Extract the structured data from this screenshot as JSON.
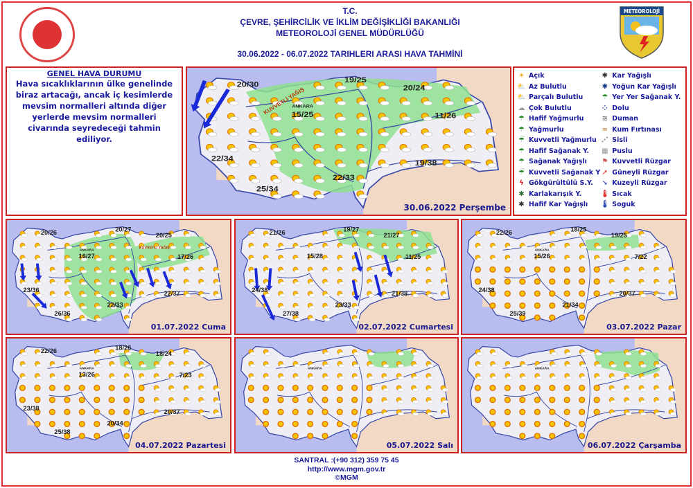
{
  "header": {
    "line1": "T.C.",
    "line2": "ÇEVRE, ŞEHİRCİLİK VE İKLİM DEĞİŞİKLİĞİ BAKANLIĞI",
    "line3": "METEOROLOJİ  GENEL  MÜDÜRLÜĞÜ",
    "range": "30.06.2022  -  06.07.2022   TARIHLERI  ARASI  HAVA  TAHMİNİ",
    "logo_text": "METEOROLOJİ"
  },
  "general": {
    "title": "GENEL HAVA DURUMU",
    "text": "Hava sıcaklıklarının ülke genelinde biraz artacağı, ancak iç kesimlerde mevsim normalleri altında diğer yerlerde mevsim normalleri civarında seyredeceği tahmin ediliyor."
  },
  "legend": [
    {
      "label": "Açık",
      "icon": "sun-icon"
    },
    {
      "label": "Az Bulutlu",
      "icon": "few-clouds-icon"
    },
    {
      "label": "Parçalı Bulutlu",
      "icon": "partly-cloudy-icon"
    },
    {
      "label": "Çok Bulutlu",
      "icon": "cloudy-icon"
    },
    {
      "label": "Hafif Yağmurlu",
      "icon": "light-rain-icon"
    },
    {
      "label": "Yağmurlu",
      "icon": "rain-icon"
    },
    {
      "label": "Kuvvetli Yağmurlu",
      "icon": "heavy-rain-icon"
    },
    {
      "label": "Hafif Sağanak Y.",
      "icon": "light-shower-icon"
    },
    {
      "label": "Sağanak Yağışlı",
      "icon": "shower-icon"
    },
    {
      "label": "Kuvvetli Sağanak Y",
      "icon": "heavy-shower-icon"
    },
    {
      "label": "Gökgürültülü S.Y.",
      "icon": "thunderstorm-icon"
    },
    {
      "label": "Karlakarışık Y.",
      "icon": "sleet-icon"
    },
    {
      "label": "Hafif Kar Yağışlı",
      "icon": "light-snow-icon"
    },
    {
      "label": "Kar Yağışlı",
      "icon": "snow-icon"
    },
    {
      "label": "Yoğun Kar Yağışlı",
      "icon": "heavy-snow-icon"
    },
    {
      "label": "Yer Yer Sağanak Y.",
      "icon": "scattered-shower-icon"
    },
    {
      "label": "Dolu",
      "icon": "hail-icon"
    },
    {
      "label": "Duman",
      "icon": "smoke-icon"
    },
    {
      "label": "Kum Fırtınası",
      "icon": "sandstorm-icon"
    },
    {
      "label": "Sisli",
      "icon": "fog-icon"
    },
    {
      "label": "Puslu",
      "icon": "haze-icon"
    },
    {
      "label": "Kuvvetli Rüzgar",
      "icon": "strong-wind-icon"
    },
    {
      "label": "Güneyli Rüzgar",
      "icon": "south-wind-arrow-icon"
    },
    {
      "label": "Kuzeyli Rüzgar",
      "icon": "north-wind-arrow-icon"
    },
    {
      "label": "Sıcak",
      "icon": "hot-thermometer-icon"
    },
    {
      "label": "Soguk",
      "icon": "cold-thermometer-icon"
    }
  ],
  "maps": [
    {
      "date": "30.06.2022 Perşembe",
      "city": "ANKARA",
      "warning": "KUVVETLİ YAĞIŞ",
      "temps": [
        "20/30",
        "19/25",
        "20/24",
        "15/25",
        "11/26",
        "22/34",
        "25/34",
        "22/33",
        "19/38"
      ]
    },
    {
      "date": "01.07.2022 Cuma",
      "city": "ANKARA",
      "warning": "KUVVETLİ YAĞIŞ",
      "temps": [
        "20/26",
        "20/27",
        "20/25",
        "16/27",
        "17/26",
        "23/36",
        "26/36",
        "22/33",
        "22/37"
      ]
    },
    {
      "date": "02.07.2022 Cumartesi",
      "temps": [
        "21/26",
        "19/27",
        "21/27",
        "15/28",
        "11/25",
        "24/38",
        "27/38",
        "23/33",
        "21/38"
      ]
    },
    {
      "date": "03.07.2022 Pazar",
      "city": "ANKARA",
      "temps": [
        "22/26",
        "18/25",
        "19/25",
        "15/26",
        "7/22",
        "24/38",
        "25/39",
        "21/34",
        "20/37"
      ]
    },
    {
      "date": "04.07.2022 Pazartesi",
      "city": "ANKARA",
      "temps": [
        "22/26",
        "18/26",
        "18/24",
        "13/26",
        "7/23",
        "23/38",
        "25/38",
        "20/34",
        "20/37"
      ]
    },
    {
      "date": "05.07.2022 Salı",
      "city": "ANKARA",
      "temps": []
    },
    {
      "date": "06.07.2022 Çarşamba",
      "city": "ANKARA",
      "temps": []
    }
  ],
  "colors": {
    "sea": "#b8bcef",
    "land": "#eeeef4",
    "outside": "#f2d9c6",
    "rain_area": "#8fe08f",
    "border": "#cc2222",
    "text": "#1a1a9c"
  },
  "footer": {
    "phone": "SANTRAL :(+90 312) 359 75 45",
    "url": "http://www.mgm.gov.tr",
    "copyright": "©MGM"
  }
}
